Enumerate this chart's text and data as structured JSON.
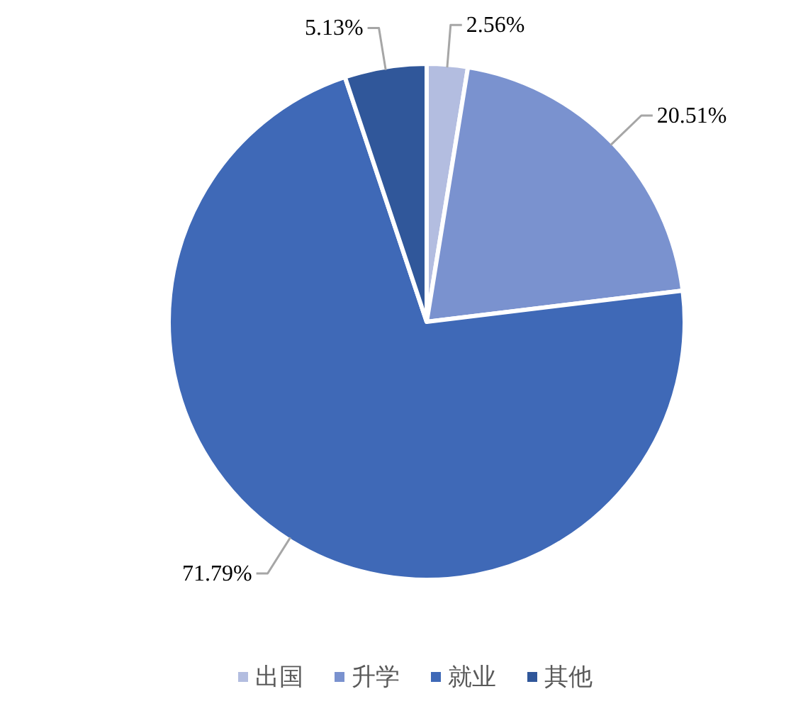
{
  "chart_data": {
    "type": "pie",
    "categories": [
      "出国",
      "升学",
      "就业",
      "其他"
    ],
    "values": [
      2.56,
      20.51,
      71.79,
      5.13
    ],
    "value_labels": [
      "2.56%",
      "20.51%",
      "71.79%",
      "5.13%"
    ],
    "colors": [
      "#b3bde0",
      "#7a92cf",
      "#3f69b7",
      "#30579a"
    ],
    "legend": "bottom"
  }
}
